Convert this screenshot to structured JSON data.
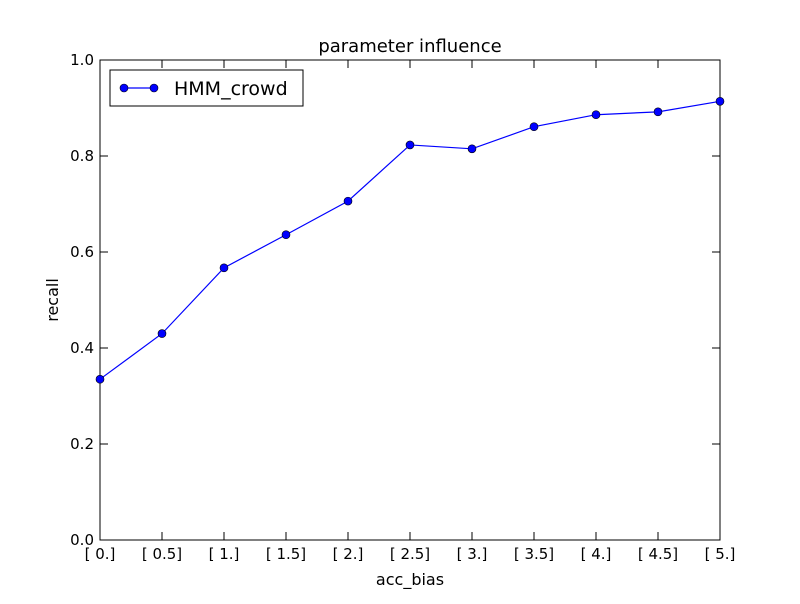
{
  "chart_data": {
    "type": "line",
    "title": "parameter influence",
    "xlabel": "acc_bias",
    "ylabel": "recall",
    "categories": [
      "[ 0.]",
      "[ 0.5]",
      "[ 1.]",
      "[ 1.5]",
      "[ 2.]",
      "[ 2.5]",
      "[ 3.]",
      "[ 3.5]",
      "[ 4.]",
      "[ 4.5]",
      "[ 5.]"
    ],
    "ylim": [
      0.0,
      1.0
    ],
    "yticks": [
      "0.0",
      "0.2",
      "0.4",
      "0.6",
      "0.8",
      "1.0"
    ],
    "grid": false,
    "legend_position": "top-left",
    "series": [
      {
        "name": "HMM_crowd",
        "color": "#0000ff",
        "marker": "circle",
        "values": [
          0.335,
          0.43,
          0.567,
          0.636,
          0.706,
          0.823,
          0.815,
          0.861,
          0.886,
          0.892,
          0.914
        ]
      }
    ]
  }
}
